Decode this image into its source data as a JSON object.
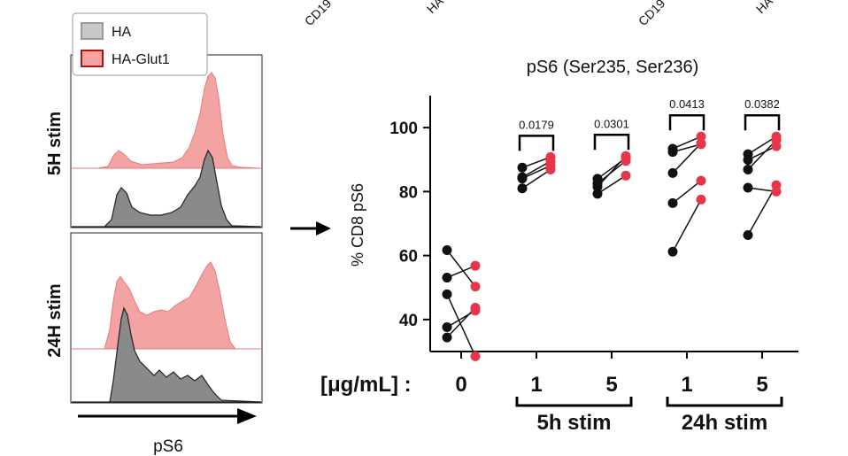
{
  "top_labels": [
    "CD19",
    "HA",
    "CD19",
    "HA"
  ],
  "histogram": {
    "legend": [
      {
        "label": "HA",
        "color": "#c8c8c8",
        "border": "#9a9a9a"
      },
      {
        "label": "HA-Glut1",
        "color": "#f4a3a3",
        "border": "#b01010"
      }
    ],
    "rows": [
      "5H stim",
      "24H stim"
    ],
    "xlabel": "pS6"
  },
  "chart_data": {
    "type": "scatter",
    "title": "pS6 (Ser235, Ser236)",
    "ylabel": "% CD8 pS6",
    "ylim": [
      30,
      110
    ],
    "yticks": [
      40,
      60,
      80,
      100
    ],
    "units_label": "[μg/mL] : ",
    "groups": [
      {
        "dose": "0",
        "stim": "",
        "p_value": null,
        "HA": [
          61.7,
          53.1,
          47.9,
          37.6,
          34.4
        ],
        "HA_Glut1": [
          50.3,
          56.8,
          28.5,
          42.8,
          43.7
        ]
      },
      {
        "dose": "1",
        "stim": "5h stim",
        "p_value": "0.0179",
        "HA": [
          87.5,
          84.1,
          81.0,
          84.5
        ],
        "HA_Glut1": [
          90.8,
          88.1,
          86.9,
          89.5
        ]
      },
      {
        "dose": "5",
        "stim": "5h stim",
        "p_value": "0.0301",
        "HA": [
          84.0,
          82.5,
          79.3,
          81.5
        ],
        "HA_Glut1": [
          90.5,
          89.6,
          85.0,
          91.1
        ]
      },
      {
        "dose": "1",
        "stim": "24h stim",
        "p_value": "0.0413",
        "HA": [
          93.4,
          92.4,
          85.8,
          76.4,
          61.2
        ],
        "HA_Glut1": [
          97.2,
          94.8,
          95.1,
          83.4,
          77.5
        ]
      },
      {
        "dose": "5",
        "stim": "24h stim",
        "p_value": "0.0382",
        "HA": [
          91.7,
          89.9,
          86.9,
          81.2,
          66.4
        ],
        "HA_Glut1": [
          97.2,
          94.2,
          96.1,
          80.0,
          82.0
        ]
      }
    ],
    "stim_labels": [
      "5h stim",
      "24h stim"
    ],
    "series": [
      {
        "name": "HA",
        "color": "#111111"
      },
      {
        "name": "HA-Glut1",
        "color": "#e8354a"
      }
    ]
  }
}
